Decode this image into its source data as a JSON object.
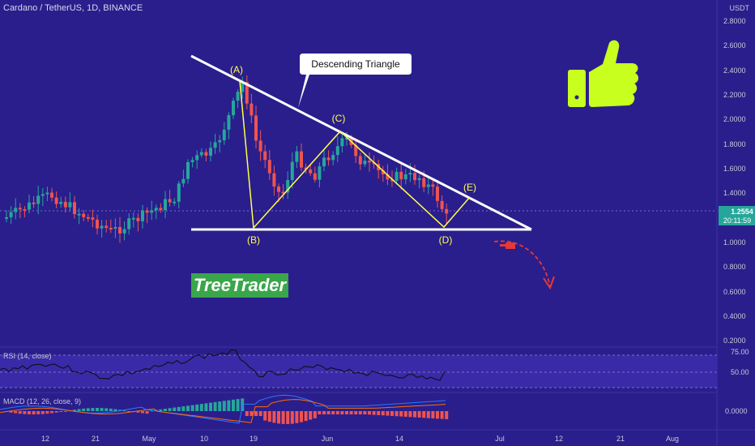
{
  "header": {
    "symbol_title": "Cardano / TetherUS, 1D, BINANCE"
  },
  "price_axis": {
    "currency": "USDT",
    "ticks": [
      "2.8000",
      "2.6000",
      "2.4000",
      "2.2000",
      "2.0000",
      "1.8000",
      "1.6000",
      "1.4000",
      "1.2000",
      "1.0000",
      "0.8000",
      "0.6000",
      "0.4000",
      "0.2000"
    ],
    "last_price": "1.2554",
    "countdown": "20:11:59"
  },
  "time_axis": {
    "ticks": [
      "12",
      "21",
      "May",
      "10",
      "19",
      "Jun",
      "14",
      "Jul",
      "12",
      "21",
      "Aug"
    ]
  },
  "annotations": {
    "callout": "Descending Triangle",
    "points": [
      "(A)",
      "(B)",
      "(C)",
      "(D)",
      "(E)"
    ],
    "brand": "TreeTrader"
  },
  "rsi": {
    "legend": "RSI (14, close)",
    "ticks": [
      "75.00",
      "50.00"
    ]
  },
  "macd": {
    "legend": "MACD (12, 26, close, 9)",
    "ticks": [
      "0.0000"
    ]
  },
  "colors": {
    "background": "#2a1e8c",
    "up": "#26a69a",
    "down": "#ef5350",
    "triangle": "#ffffff",
    "wave": "#ffff4a",
    "thumb": "#c8ff1e",
    "brand_bg": "#3aa64a",
    "arrow": "#e53935"
  },
  "icons": [
    "thumbs-up-icon",
    "down-arrow-icon"
  ]
}
